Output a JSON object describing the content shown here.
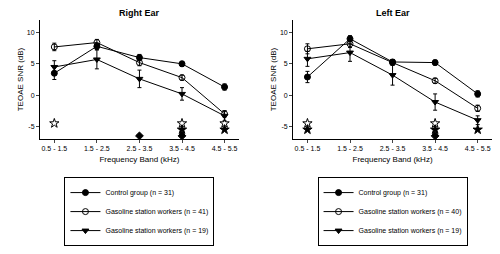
{
  "chart_data": [
    {
      "type": "line",
      "title": "Right Ear",
      "x_label": "Frequency Band (kHz)",
      "y_label": "TEOAE SNR (dB)",
      "categories": [
        "0.5 - 1.5",
        "1.5 - 2.5",
        "2.5 - 3.5",
        "3.5 - 4.5",
        "4.5 - 5.5"
      ],
      "ylim": [
        -7,
        12
      ],
      "yticks": [
        -5,
        0,
        5,
        10
      ],
      "grid": false,
      "legend": "bottom",
      "series": [
        {
          "name": "Control group (n = 31)",
          "color": "#000000",
          "marker": "circle",
          "line_style": "solid",
          "values": [
            3.5,
            7.8,
            6.0,
            5.0,
            1.3
          ],
          "errors": [
            1.0,
            0.5,
            0.5,
            0.4,
            0.5
          ]
        },
        {
          "name": "Gasoline station workers (n = 41)",
          "color": "#000000",
          "marker": "circle-open",
          "line_style": "solid",
          "values": [
            7.7,
            8.4,
            5.2,
            2.8,
            -3.0
          ],
          "errors": [
            0.6,
            0.5,
            0.5,
            0.4,
            0.5
          ]
        },
        {
          "name": "Gasoline station workers (n = 19)",
          "color": "#000000",
          "marker": "triangle-down",
          "line_style": "solid",
          "values": [
            4.5,
            5.7,
            2.6,
            0.2,
            -3.3
          ],
          "errors": [
            1.0,
            1.5,
            1.4,
            1.0,
            0.8
          ]
        },
        {
          "type": "scatter",
          "color": "#000000",
          "marker": "star-open",
          "values": [
            -4.5,
            null,
            null,
            -4.5,
            -4.5
          ]
        },
        {
          "type": "scatter",
          "color": "#000000",
          "marker": "star",
          "values": [
            null,
            null,
            null,
            -5.5,
            -5.5
          ]
        },
        {
          "type": "scatter",
          "color": "#000000",
          "marker": "diamond",
          "values": [
            null,
            null,
            -6.5,
            -6.5,
            null
          ]
        }
      ]
    },
    {
      "type": "line",
      "title": "Left Ear",
      "x_label": "Frequency Band (kHz)",
      "y_label": "TEOAE SNR (dB)",
      "categories": [
        "0.5 - 1.5",
        "1.5 - 2.5",
        "2.5 - 3.5",
        "3.5 - 4.5",
        "4.5 - 5.5"
      ],
      "ylim": [
        -7,
        12
      ],
      "yticks": [
        -5,
        0,
        5,
        10
      ],
      "grid": false,
      "legend": "bottom",
      "series": [
        {
          "name": "Control group (n = 31)",
          "color": "#000000",
          "marker": "circle",
          "line_style": "solid",
          "values": [
            2.9,
            9.0,
            5.3,
            5.2,
            0.2
          ],
          "errors": [
            0.9,
            0.5,
            0.4,
            0.4,
            0.5
          ]
        },
        {
          "name": "Gasoline station workers (n = 40)",
          "color": "#000000",
          "marker": "circle-open",
          "line_style": "solid",
          "values": [
            7.4,
            8.2,
            5.2,
            2.3,
            -2.1
          ],
          "errors": [
            0.8,
            0.6,
            0.4,
            0.4,
            0.5
          ]
        },
        {
          "name": "Gasoline station workers (n = 19)",
          "color": "#000000",
          "marker": "triangle-down",
          "line_style": "solid",
          "values": [
            5.8,
            6.8,
            3.2,
            -1.1,
            -4.0
          ],
          "errors": [
            1.2,
            1.4,
            1.6,
            1.3,
            0.7
          ]
        },
        {
          "type": "scatter",
          "color": "#000000",
          "marker": "star-open",
          "values": [
            -4.5,
            null,
            null,
            -4.5,
            null
          ]
        },
        {
          "type": "scatter",
          "color": "#000000",
          "marker": "star",
          "values": [
            -5.5,
            null,
            null,
            -5.5,
            -5.5
          ]
        },
        {
          "type": "scatter",
          "color": "#000000",
          "marker": "diamond",
          "values": [
            null,
            null,
            null,
            -6.5,
            null
          ]
        }
      ]
    }
  ]
}
